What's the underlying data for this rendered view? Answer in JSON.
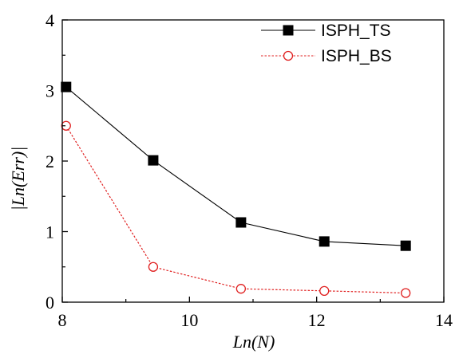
{
  "chart_data": {
    "type": "line",
    "xlabel": "Ln(N)",
    "ylabel": "|Ln(Err)|",
    "xlim": [
      8,
      14
    ],
    "ylim": [
      0,
      4
    ],
    "xticks": [
      "8",
      "10",
      "12",
      "14"
    ],
    "yticks": [
      "0",
      "1",
      "2",
      "3",
      "4"
    ],
    "grid": false,
    "legend_position": "top-right",
    "series": [
      {
        "name": "ISPH_TS",
        "color": "#000000",
        "line_style": "solid",
        "marker": "filled-square",
        "x": [
          8.06,
          9.43,
          10.81,
          12.12,
          13.4
        ],
        "y": [
          3.05,
          2.01,
          1.13,
          0.86,
          0.8
        ]
      },
      {
        "name": "ISPH_BS",
        "color": "#e02020",
        "line_style": "dotted",
        "marker": "open-circle",
        "x": [
          8.06,
          9.43,
          10.81,
          12.12,
          13.4
        ],
        "y": [
          2.5,
          0.5,
          0.19,
          0.16,
          0.13
        ]
      }
    ]
  }
}
